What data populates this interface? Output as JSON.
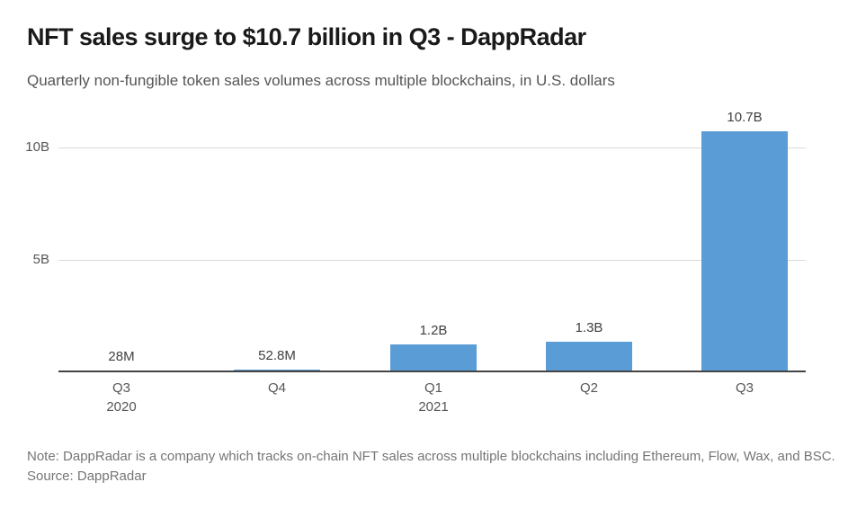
{
  "chart_data": {
    "type": "bar",
    "title": "NFT sales surge to $10.7 billion in Q3 - DappRadar",
    "subtitle": "Quarterly non-fungible token sales volumes across multiple blockchains, in U.S. dollars",
    "unit": "U.S. dollars",
    "categories": [
      "Q3 2020",
      "Q4 2020",
      "Q1 2021",
      "Q2 2021",
      "Q3 2021"
    ],
    "x_tick_lines": [
      [
        "Q3",
        "2020"
      ],
      [
        "Q4"
      ],
      [
        "Q1",
        "2021"
      ],
      [
        "Q2"
      ],
      [
        "Q3"
      ]
    ],
    "values_billions": [
      0.028,
      0.0528,
      1.2,
      1.3,
      10.7
    ],
    "value_labels": [
      "28M",
      "52.8M",
      "1.2B",
      "1.3B",
      "10.7B"
    ],
    "y_ticks": [
      {
        "value": 5,
        "label": "5B"
      },
      {
        "value": 10,
        "label": "10B"
      }
    ],
    "ylim": [
      0,
      11.1
    ],
    "grid": "horizontal",
    "legend": "none",
    "bar_color": "#5A9CD5",
    "grid_color": "#DADADA",
    "axis_color": "#444444"
  },
  "footer": {
    "note": "Note: DappRadar is a company which tracks on-chain NFT sales across multiple blockchains including Ethereum, Flow, Wax, and BSC.",
    "source": "Source: DappRadar"
  }
}
